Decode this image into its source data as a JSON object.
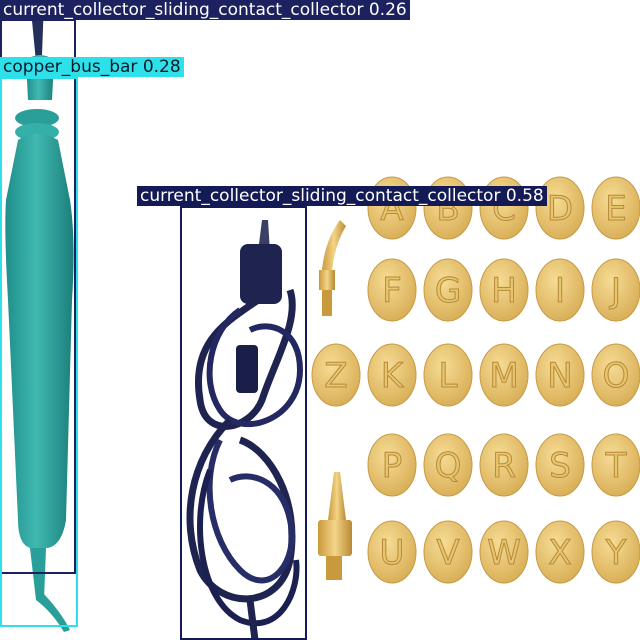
{
  "detections": [
    {
      "label": "current_collector_sliding_contact_collector",
      "score": "0.26",
      "color": "#1c2260",
      "text_color": "#ffffff"
    },
    {
      "label": "copper_bus_bar",
      "score": "0.28",
      "color": "#2ee0ea",
      "text_color": "#0a1b2a"
    },
    {
      "label": "current_collector_sliding_contact_collector",
      "score": "0.58",
      "color": "#141a55",
      "text_color": "#ffffff"
    }
  ],
  "tip_letters": [
    [
      "A",
      "B",
      "C",
      "D",
      "E"
    ],
    [
      "F",
      "G",
      "H",
      "I",
      "J"
    ],
    [
      "Z",
      "K",
      "L",
      "M",
      "N",
      "O"
    ],
    [
      "P",
      "Q",
      "R",
      "S",
      "T"
    ],
    [
      "U",
      "V",
      "W",
      "X",
      "Y"
    ]
  ],
  "colors": {
    "handle": "#2faaa3",
    "cable": "#1e2350",
    "brass": "#e6c16a"
  }
}
